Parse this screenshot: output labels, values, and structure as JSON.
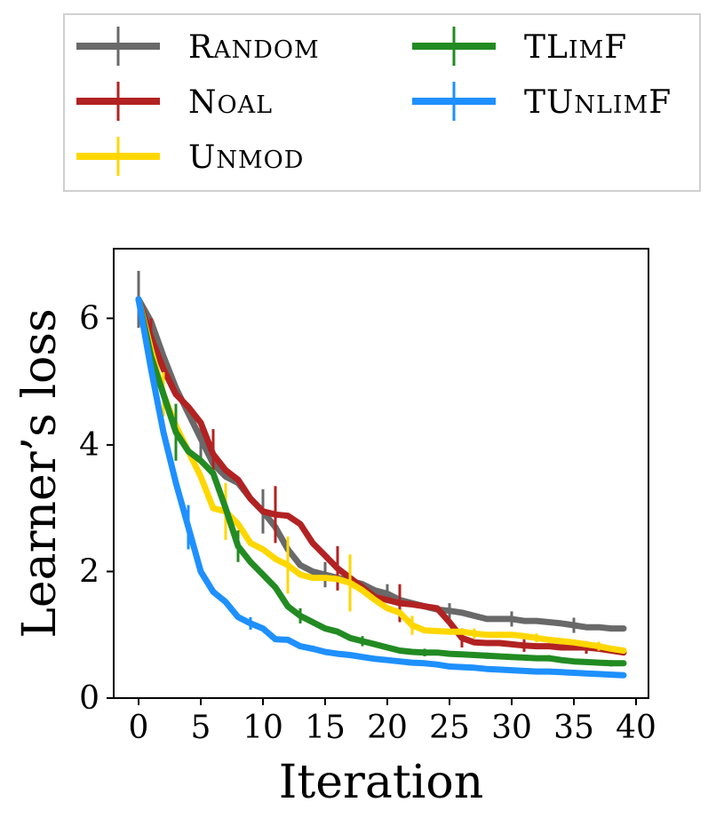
{
  "chart_data": {
    "type": "line",
    "title": "",
    "xlabel": "Iteration",
    "ylabel": "Learner’s loss",
    "xlim": [
      -2,
      41
    ],
    "ylim": [
      0,
      7.1
    ],
    "xticks": [
      0,
      5,
      10,
      15,
      20,
      25,
      30,
      35,
      40
    ],
    "yticks": [
      0,
      2,
      4,
      6
    ],
    "legend_position": "above",
    "series": [
      {
        "name": "Random",
        "color": "#696969",
        "x": [
          0,
          1,
          2,
          3,
          4,
          5,
          6,
          7,
          8,
          9,
          10,
          11,
          12,
          13,
          14,
          15,
          16,
          17,
          18,
          19,
          20,
          21,
          22,
          23,
          24,
          25,
          26,
          27,
          28,
          29,
          30,
          31,
          32,
          33,
          34,
          35,
          36,
          37,
          38,
          39
        ],
        "values": [
          6.3,
          5.95,
          5.4,
          4.9,
          4.5,
          4.1,
          3.7,
          3.5,
          3.4,
          3.15,
          2.95,
          2.7,
          2.35,
          2.1,
          2.0,
          1.95,
          1.9,
          1.85,
          1.8,
          1.7,
          1.65,
          1.55,
          1.5,
          1.45,
          1.4,
          1.38,
          1.35,
          1.3,
          1.25,
          1.25,
          1.25,
          1.22,
          1.22,
          1.2,
          1.18,
          1.15,
          1.12,
          1.12,
          1.1,
          1.1
        ],
        "error_x": [
          0,
          5,
          10,
          15,
          20,
          25,
          30,
          35
        ],
        "error_y": [
          0.45,
          0.3,
          0.35,
          0.2,
          0.15,
          0.12,
          0.12,
          0.12
        ]
      },
      {
        "name": "NoAL",
        "color": "#b22222",
        "x": [
          0,
          1,
          2,
          3,
          4,
          5,
          6,
          7,
          8,
          9,
          10,
          11,
          12,
          13,
          14,
          15,
          16,
          17,
          18,
          19,
          20,
          21,
          22,
          23,
          24,
          25,
          26,
          27,
          28,
          29,
          30,
          31,
          32,
          33,
          34,
          35,
          36,
          37,
          38,
          39
        ],
        "values": [
          6.3,
          5.7,
          5.2,
          4.8,
          4.6,
          4.35,
          3.85,
          3.6,
          3.45,
          3.15,
          2.95,
          2.9,
          2.88,
          2.75,
          2.45,
          2.25,
          2.05,
          1.9,
          1.75,
          1.6,
          1.55,
          1.5,
          1.48,
          1.45,
          1.42,
          1.2,
          0.95,
          0.88,
          0.87,
          0.87,
          0.85,
          0.83,
          0.82,
          0.82,
          0.8,
          0.8,
          0.8,
          0.78,
          0.75,
          0.72
        ],
        "error_x": [
          1,
          6,
          11,
          16,
          21,
          26,
          31,
          36
        ],
        "error_y": [
          0.3,
          0.4,
          0.45,
          0.35,
          0.3,
          0.15,
          0.1,
          0.1
        ]
      },
      {
        "name": "Unmod",
        "color": "#ffd700",
        "x": [
          0,
          1,
          2,
          3,
          4,
          5,
          6,
          7,
          8,
          9,
          10,
          11,
          12,
          13,
          14,
          15,
          16,
          17,
          18,
          19,
          20,
          21,
          22,
          23,
          24,
          25,
          26,
          27,
          28,
          29,
          30,
          31,
          32,
          33,
          34,
          35,
          36,
          37,
          38,
          39
        ],
        "values": [
          6.3,
          5.5,
          4.8,
          4.3,
          3.9,
          3.5,
          3.0,
          2.95,
          2.75,
          2.45,
          2.35,
          2.2,
          2.1,
          1.95,
          1.9,
          1.9,
          1.88,
          1.82,
          1.7,
          1.55,
          1.42,
          1.35,
          1.15,
          1.07,
          1.06,
          1.05,
          1.05,
          1.02,
          1.0,
          1.0,
          1.0,
          0.98,
          0.95,
          0.92,
          0.9,
          0.88,
          0.85,
          0.82,
          0.78,
          0.75
        ],
        "error_x": [
          2,
          7,
          12,
          17,
          22,
          27,
          32,
          37
        ],
        "error_y": [
          0.35,
          0.45,
          0.45,
          0.45,
          0.15,
          0.08,
          0.07,
          0.07
        ]
      },
      {
        "name": "TLimF",
        "color": "#228b22",
        "x": [
          0,
          1,
          2,
          3,
          4,
          5,
          6,
          7,
          8,
          9,
          10,
          11,
          12,
          13,
          14,
          15,
          16,
          17,
          18,
          19,
          20,
          21,
          22,
          23,
          24,
          25,
          26,
          27,
          28,
          29,
          30,
          31,
          32,
          33,
          34,
          35,
          36,
          37,
          38,
          39
        ],
        "values": [
          6.3,
          5.4,
          4.8,
          4.2,
          3.9,
          3.75,
          3.55,
          3.0,
          2.4,
          2.15,
          1.95,
          1.75,
          1.45,
          1.3,
          1.2,
          1.1,
          1.05,
          0.95,
          0.9,
          0.85,
          0.8,
          0.75,
          0.73,
          0.72,
          0.72,
          0.7,
          0.69,
          0.68,
          0.67,
          0.66,
          0.65,
          0.64,
          0.63,
          0.63,
          0.6,
          0.58,
          0.57,
          0.56,
          0.55,
          0.55
        ],
        "error_x": [
          3,
          8,
          13,
          18,
          23,
          28,
          33,
          38
        ],
        "error_y": [
          0.45,
          0.25,
          0.12,
          0.08,
          0.06,
          0.05,
          0.05,
          0.05
        ]
      },
      {
        "name": "TUnlimF",
        "color": "#1e90ff",
        "x": [
          0,
          1,
          2,
          3,
          4,
          5,
          6,
          7,
          8,
          9,
          10,
          11,
          12,
          13,
          14,
          15,
          16,
          17,
          18,
          19,
          20,
          21,
          22,
          23,
          24,
          25,
          26,
          27,
          28,
          29,
          30,
          31,
          32,
          33,
          34,
          35,
          36,
          37,
          38,
          39
        ],
        "values": [
          6.3,
          5.2,
          4.2,
          3.4,
          2.7,
          2.0,
          1.68,
          1.52,
          1.28,
          1.18,
          1.1,
          0.93,
          0.92,
          0.82,
          0.78,
          0.73,
          0.7,
          0.68,
          0.65,
          0.62,
          0.6,
          0.58,
          0.56,
          0.55,
          0.53,
          0.5,
          0.49,
          0.48,
          0.46,
          0.45,
          0.44,
          0.43,
          0.42,
          0.42,
          0.41,
          0.4,
          0.39,
          0.38,
          0.37,
          0.36
        ],
        "error_x": [
          4,
          9,
          14,
          19,
          24,
          29,
          34,
          39
        ],
        "error_y": [
          0.35,
          0.1,
          0.05,
          0.04,
          0.03,
          0.03,
          0.03,
          0.03
        ]
      }
    ],
    "legend_labels": [
      {
        "first": "R",
        "rest": "ANDOM"
      },
      {
        "first": "N",
        "rest": "OAL"
      },
      {
        "first": "U",
        "rest": "NMOD"
      },
      {
        "first": "TL",
        "rest": "IM",
        "last": "F"
      },
      {
        "first": "TU",
        "rest": "NLIM",
        "last": "F"
      }
    ]
  }
}
